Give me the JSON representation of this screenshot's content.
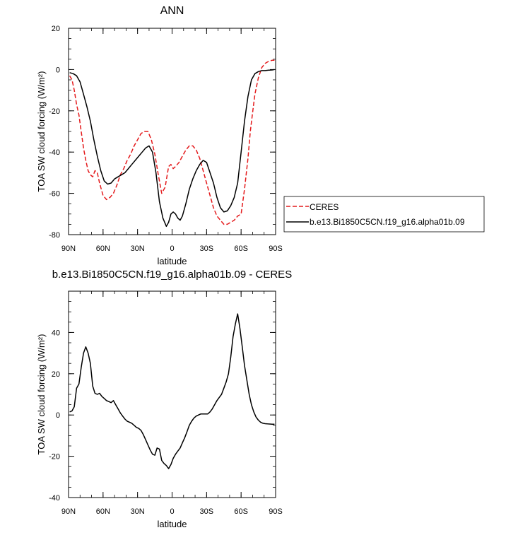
{
  "colors": {
    "ceres": "#e41a1c",
    "model": "#000000"
  },
  "chart_data": [
    {
      "type": "line",
      "title": "ANN",
      "xlabel": "latitude",
      "ylabel": "TOA SW cloud forcing (W/m²)",
      "xlim": [
        90,
        -90
      ],
      "ylim": [
        -80,
        20
      ],
      "x_ticks": [
        {
          "v": 90,
          "label": "90N"
        },
        {
          "v": 60,
          "label": "60N"
        },
        {
          "v": 30,
          "label": "30N"
        },
        {
          "v": 0,
          "label": "0"
        },
        {
          "v": -30,
          "label": "30S"
        },
        {
          "v": -60,
          "label": "60S"
        },
        {
          "v": -90,
          "label": "90S"
        }
      ],
      "y_ticks": [
        {
          "v": 20,
          "label": "20"
        },
        {
          "v": 0,
          "label": "0"
        },
        {
          "v": -20,
          "label": "-20"
        },
        {
          "v": -40,
          "label": "-40"
        },
        {
          "v": -60,
          "label": "-60"
        },
        {
          "v": -80,
          "label": "-80"
        }
      ],
      "legend": "right",
      "series": [
        {
          "name": "CERES",
          "style": "dashed",
          "color": "#e41a1c",
          "x": [
            89,
            87,
            85,
            83,
            81,
            79,
            77,
            75,
            73,
            71,
            69,
            67,
            65,
            63,
            60,
            57,
            54,
            51,
            48,
            45,
            42,
            39,
            36,
            33,
            30,
            27,
            24,
            21,
            18,
            15,
            12,
            9,
            6,
            3,
            1,
            -1,
            -3,
            -6,
            -9,
            -12,
            -15,
            -18,
            -21,
            -24,
            -27,
            -30,
            -33,
            -36,
            -39,
            -42,
            -45,
            -48,
            -51,
            -54,
            -57,
            -60,
            -63,
            -66,
            -68,
            -70,
            -72,
            -75,
            -78,
            -81,
            -84,
            -87,
            -89
          ],
          "y": [
            -3,
            -5,
            -10,
            -17,
            -22,
            -30,
            -38,
            -44,
            -49,
            -51,
            -52,
            -49,
            -50,
            -55,
            -61,
            -63,
            -62,
            -60,
            -56,
            -51,
            -48,
            -44,
            -41,
            -37,
            -34,
            -31,
            -30,
            -30,
            -34,
            -41,
            -51,
            -60,
            -57,
            -47,
            -46,
            -48,
            -47,
            -45,
            -42,
            -39,
            -37,
            -37,
            -39,
            -43,
            -49,
            -55,
            -61,
            -67,
            -71,
            -73,
            -75,
            -75,
            -74,
            -73,
            -71,
            -70,
            -58,
            -43,
            -30,
            -21,
            -12,
            -4,
            1,
            3,
            4,
            4.5,
            4.5
          ]
        },
        {
          "name": "b.e13.Bi1850C5CN.f19_g16.alpha01b.09",
          "style": "solid",
          "color": "#000000",
          "x": [
            89,
            86,
            83,
            80,
            77,
            74,
            71,
            68,
            65,
            62,
            59,
            56,
            53,
            50,
            47,
            44,
            41,
            38,
            35,
            32,
            29,
            26,
            23,
            20,
            17,
            14,
            11,
            8,
            5,
            3,
            1,
            -1,
            -3,
            -5,
            -7,
            -9,
            -12,
            -15,
            -18,
            -21,
            -24,
            -27,
            -30,
            -33,
            -36,
            -39,
            -42,
            -45,
            -48,
            -51,
            -54,
            -57,
            -60,
            -63,
            -66,
            -69,
            -72,
            -75,
            -78,
            -81,
            -84,
            -87,
            -89
          ],
          "y": [
            -1.5,
            -2,
            -3,
            -6,
            -12,
            -18,
            -25,
            -34,
            -42,
            -49,
            -54,
            -55.5,
            -55,
            -53,
            -52,
            -51,
            -50,
            -48,
            -46,
            -44,
            -42,
            -40,
            -38,
            -37,
            -40,
            -50,
            -64,
            -72,
            -76,
            -74,
            -70,
            -69,
            -70,
            -72,
            -73,
            -71,
            -65,
            -58,
            -53,
            -49,
            -46,
            -44,
            -45,
            -50,
            -55,
            -62,
            -67,
            -69,
            -68.5,
            -66,
            -62,
            -55,
            -40,
            -25,
            -13,
            -5,
            -2,
            -1,
            -0.5,
            -0.5,
            -0.3,
            -0.2,
            0
          ]
        }
      ]
    },
    {
      "type": "line",
      "title": "b.e13.Bi1850C5CN.f19_g16.alpha01b.09 - CERES",
      "xlabel": "latitude",
      "ylabel": "TOA SW cloud forcing (W/m²)",
      "xlim": [
        90,
        -90
      ],
      "ylim": [
        -40,
        60
      ],
      "x_ticks": [
        {
          "v": 90,
          "label": "90N"
        },
        {
          "v": 60,
          "label": "60N"
        },
        {
          "v": 30,
          "label": "30N"
        },
        {
          "v": 0,
          "label": "0"
        },
        {
          "v": -30,
          "label": "30S"
        },
        {
          "v": -60,
          "label": "60S"
        },
        {
          "v": -90,
          "label": "90S"
        }
      ],
      "y_ticks": [
        {
          "v": 40,
          "label": "40"
        },
        {
          "v": 20,
          "label": "20"
        },
        {
          "v": 0,
          "label": "0"
        },
        {
          "v": -20,
          "label": "-20"
        },
        {
          "v": -40,
          "label": "-40"
        }
      ],
      "series": [
        {
          "style": "solid",
          "color": "#000000",
          "x": [
            89,
            87,
            85,
            83,
            81,
            79,
            77,
            75,
            73,
            71,
            69,
            67,
            65,
            63,
            61,
            59,
            57,
            55,
            53,
            51,
            49,
            47,
            45,
            43,
            41,
            39,
            37,
            35,
            33,
            31,
            29,
            27,
            25,
            23,
            21,
            19,
            17,
            15,
            13,
            11,
            9,
            7,
            5,
            3,
            1,
            -1,
            -3,
            -5,
            -7,
            -9,
            -11,
            -13,
            -15,
            -17,
            -19,
            -21,
            -23,
            -25,
            -27,
            -29,
            -31,
            -33,
            -35,
            -37,
            -39,
            -41,
            -43,
            -45,
            -47,
            -49,
            -51,
            -53,
            -55,
            -57,
            -59,
            -61,
            -63,
            -65,
            -67,
            -69,
            -71,
            -73,
            -75,
            -77,
            -79,
            -81,
            -83,
            -85,
            -87,
            -89
          ],
          "y": [
            1.5,
            2,
            4,
            13,
            15,
            23,
            30,
            33,
            30,
            25,
            14,
            10.5,
            10,
            10.5,
            9,
            8,
            7,
            6.5,
            6,
            7,
            5,
            3,
            1,
            -0.5,
            -2,
            -3,
            -3.5,
            -4,
            -5,
            -6,
            -6.5,
            -7.5,
            -9.5,
            -12,
            -14.5,
            -17,
            -19,
            -19.5,
            -16,
            -16.5,
            -22,
            -23.5,
            -24.5,
            -26,
            -24,
            -21,
            -19,
            -17.5,
            -16,
            -13.5,
            -11,
            -8,
            -5,
            -3,
            -1.5,
            -0.5,
            0,
            0.5,
            0.5,
            0.5,
            0.5,
            1.5,
            3,
            5,
            7,
            8.5,
            10,
            13,
            16,
            20,
            28,
            38,
            44,
            49,
            42,
            33,
            24,
            17,
            10,
            5,
            1.5,
            -1,
            -2.5,
            -3.5,
            -4,
            -4.2,
            -4.3,
            -4.4,
            -4.5,
            -4.5
          ]
        }
      ]
    }
  ]
}
